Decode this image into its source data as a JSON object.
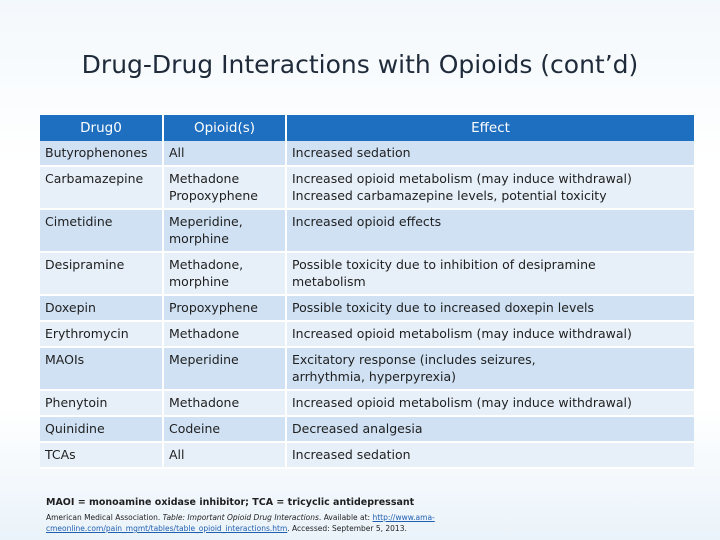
{
  "title": "Drug-Drug Interactions with Opioids (cont’d)",
  "table": {
    "headers": [
      "Drug0",
      "Opioid(s)",
      "Effect"
    ],
    "rows": [
      [
        "Butyrophenones",
        "All",
        "Increased sedation"
      ],
      [
        "Carbamazepine",
        "Methadone\nPropoxyphene",
        "Increased opioid metabolism (may induce withdrawal)\nIncreased carbamazepine levels, potential toxicity"
      ],
      [
        "Cimetidine",
        "Meperidine,\nmorphine",
        "Increased opioid effects"
      ],
      [
        "Desipramine",
        "Methadone,\nmorphine",
        "Possible toxicity due to inhibition of desipramine\nmetabolism"
      ],
      [
        "Doxepin",
        "Propoxyphene",
        "Possible toxicity due to increased doxepin levels"
      ],
      [
        "Erythromycin",
        "Methadone",
        "Increased opioid metabolism (may induce withdrawal)"
      ],
      [
        "MAOIs",
        "Meperidine",
        "Excitatory response (includes seizures,\narrhythmia, hyperpyrexia)"
      ],
      [
        "Phenytoin",
        "Methadone",
        "Increased opioid metabolism (may induce withdrawal)"
      ],
      [
        "Quinidine",
        "Codeine",
        "Decreased analgesia"
      ],
      [
        "TCAs",
        "All",
        "Increased sedation"
      ]
    ]
  },
  "footnote": "MAOI = monoamine oxidase inhibitor; TCA = tricyclic antidepressant",
  "source": {
    "prefix": "American Medical Association. ",
    "italic": "Table: Important Opioid Drug Interactions",
    "middle": ". Available at: ",
    "link": "http://www.ama-cmeonline.com/pain_mgmt/tables/table_opioid_interactions.htm",
    "suffix": ". Accessed: September 5, 2013."
  },
  "colors": {
    "header_bg": "#1f6fc0",
    "row_odd": "#cfe1f3",
    "row_even": "#e7f0f9"
  }
}
